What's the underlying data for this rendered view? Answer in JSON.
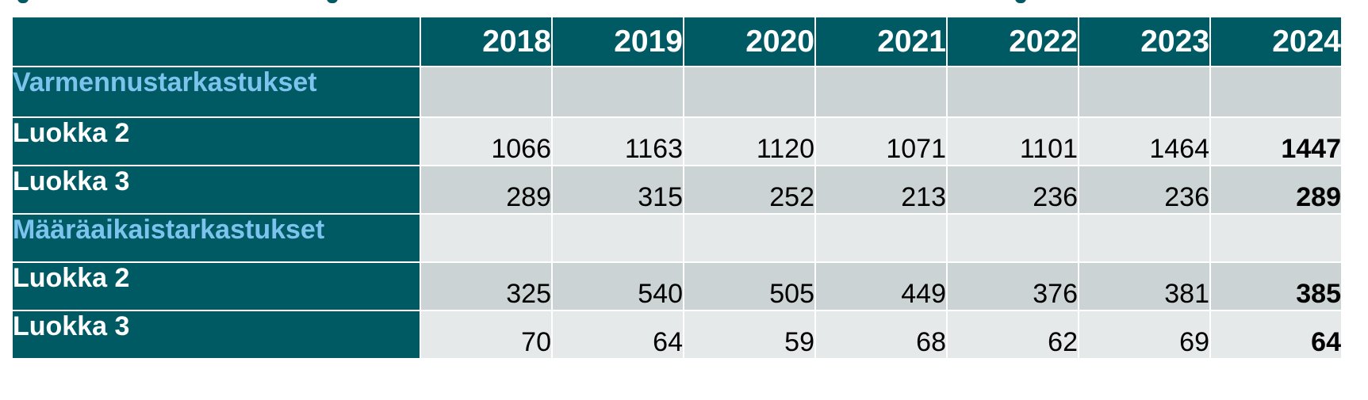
{
  "top_strip": {
    "fragment_color": "#005a64",
    "fragment_offsets": [
      22,
      412,
      1280
    ]
  },
  "chart_data": {
    "type": "table",
    "columns": [
      "",
      "2018",
      "2019",
      "2020",
      "2021",
      "2022",
      "2023",
      "2024"
    ],
    "rows": [
      {
        "label": "Varmennustarkastukset",
        "section": true,
        "values": [
          "",
          "",
          "",
          "",
          "",
          "",
          ""
        ]
      },
      {
        "label": "Luokka 2",
        "section": false,
        "values": [
          "1066",
          "1163",
          "1120",
          "1071",
          "1101",
          "1464",
          "1447"
        ]
      },
      {
        "label": "Luokka 3",
        "section": false,
        "values": [
          "289",
          "315",
          "252",
          "213",
          "236",
          "236",
          "289"
        ]
      },
      {
        "label": "Määräaikaistarkastukset",
        "section": true,
        "values": [
          "",
          "",
          "",
          "",
          "",
          "",
          ""
        ]
      },
      {
        "label": "Luokka 2",
        "section": false,
        "values": [
          "325",
          "540",
          "505",
          "449",
          "376",
          "381",
          "385"
        ]
      },
      {
        "label": "Luokka 3",
        "section": false,
        "values": [
          "70",
          "64",
          "59",
          "68",
          "62",
          "69",
          "64"
        ]
      }
    ],
    "colors": {
      "header_bg": "#005a64",
      "header_text": "#ffffff",
      "section_text": "#7cc4ee",
      "row_dark": "#cbd3d4",
      "row_light": "#e6e9ea"
    }
  }
}
